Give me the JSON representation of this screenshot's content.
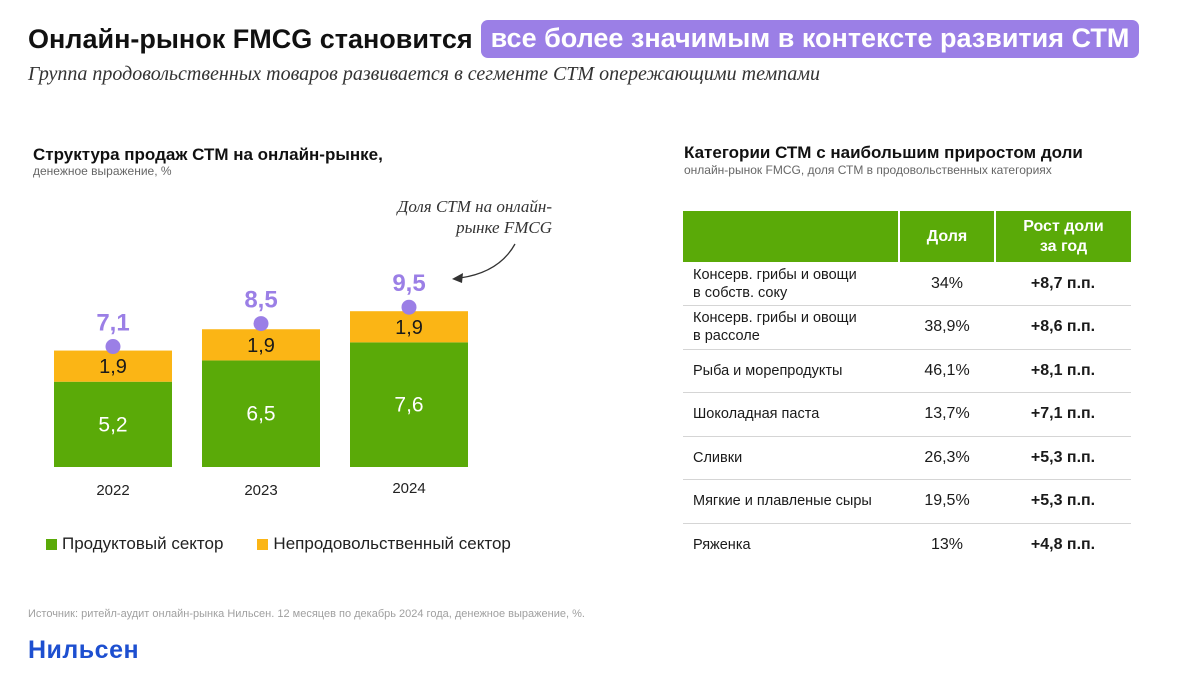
{
  "header": {
    "title_main": "Онлайн-рынок FMCG становится",
    "title_highlight": "все более значимым в контексте развития СТМ",
    "subtitle": "Группа продовольственных товаров развивается в сегменте СТМ опережающими темпами"
  },
  "chart": {
    "title": "Структура продаж СТМ на онлайн-рынке,",
    "subtitle": "денежное выражение, %",
    "annotation_line1": "Доля СТМ на онлайн-",
    "annotation_line2": "рынке FMCG"
  },
  "chart_data": {
    "type": "bar",
    "stacked": true,
    "title": "Структура продаж СТМ на онлайн-рынке,",
    "subtitle": "денежное выражение, %",
    "categories": [
      "2022",
      "2023",
      "2024"
    ],
    "series": [
      {
        "name": "Продуктовый сектор",
        "color": "#5aaa08",
        "values": [
          5.2,
          6.5,
          7.6
        ],
        "labels": [
          "5,2",
          "6,5",
          "7,6"
        ]
      },
      {
        "name": "Непродовольственный сектор",
        "color": "#fbb515",
        "values": [
          1.9,
          1.9,
          1.9
        ],
        "labels": [
          "1,9",
          "1,9",
          "1,9"
        ]
      }
    ],
    "totals": [
      7.1,
      8.5,
      9.5
    ],
    "total_labels": [
      "7,1",
      "8,5",
      "9,5"
    ],
    "total_marker_color": "#9b7fe6",
    "annotation": "Доля СТМ на онлайн-рынке FMCG",
    "legend_position": "bottom",
    "grid": false
  },
  "legend": {
    "items": [
      {
        "label": "Продуктовый сектор",
        "color": "#5aaa08"
      },
      {
        "label": "Непродовольственный сектор",
        "color": "#fbb515"
      }
    ]
  },
  "table": {
    "title": "Категории СТМ с наибольшим приростом доли",
    "subtitle": "онлайн-рынок FMCG, доля СТМ в продовольственных категориях",
    "headers": {
      "category": "",
      "share": "Доля",
      "growth_line1": "Рост доли",
      "growth_line2": "за год"
    },
    "rows": [
      {
        "cat1": "Консерв. грибы и овощи",
        "cat2": "в собств. соку",
        "share": "34%",
        "growth": "+8,7 п.п."
      },
      {
        "cat1": "Консерв. грибы и овощи",
        "cat2": "в рассоле",
        "share": "38,9%",
        "growth": "+8,6 п.п."
      },
      {
        "cat1": "Рыба и морепродукты",
        "cat2": "",
        "share": "46,1%",
        "growth": "+8,1 п.п."
      },
      {
        "cat1": "Шоколадная паста",
        "cat2": "",
        "share": "13,7%",
        "growth": "+7,1 п.п."
      },
      {
        "cat1": "Сливки",
        "cat2": "",
        "share": "26,3%",
        "growth": "+5,3 п.п."
      },
      {
        "cat1": "Мягкие и плавленые сыры",
        "cat2": "",
        "share": "19,5%",
        "growth": "+5,3 п.п."
      },
      {
        "cat1": "Ряженка",
        "cat2": "",
        "share": "13%",
        "growth": "+4,8 п.п."
      }
    ]
  },
  "footer": {
    "source": "Источник: ритейл-аудит онлайн-рынка Нильсен. 12 месяцев по декабрь 2024 года, денежное выражение, %.",
    "logo": "Нильсен"
  },
  "colors": {
    "accent": "#9b7fe6",
    "green": "#5aaa08",
    "orange": "#fbb515",
    "logo": "#1d4fd0"
  }
}
